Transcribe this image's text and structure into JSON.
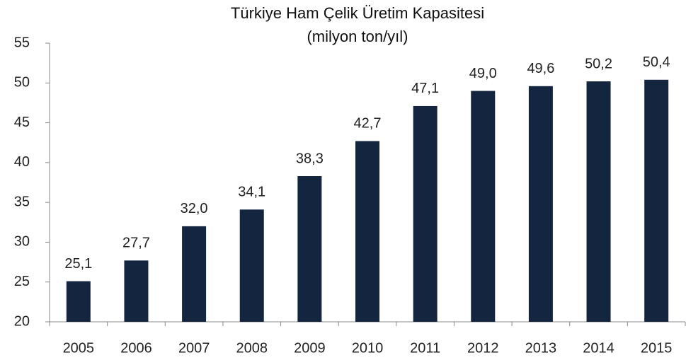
{
  "chart_data": {
    "type": "bar",
    "title": "Türkiye Ham Çelik Üretim Kapasitesi",
    "subtitle": "(milyon ton/yıl)",
    "categories": [
      "2005",
      "2006",
      "2007",
      "2008",
      "2009",
      "2010",
      "2011",
      "2012",
      "2013",
      "2014",
      "2015"
    ],
    "values": [
      25.1,
      27.7,
      32.0,
      34.1,
      38.3,
      42.7,
      47.1,
      49.0,
      49.6,
      50.2,
      50.4
    ],
    "value_labels": [
      "25,1",
      "27,7",
      "32,0",
      "34,1",
      "38,3",
      "42,7",
      "47,1",
      "49,0",
      "49,6",
      "50,2",
      "50,4"
    ],
    "color": "#13253f",
    "ylim": [
      20,
      55
    ],
    "yticks": [
      20,
      25,
      30,
      35,
      40,
      45,
      50,
      55
    ],
    "grid": false
  }
}
